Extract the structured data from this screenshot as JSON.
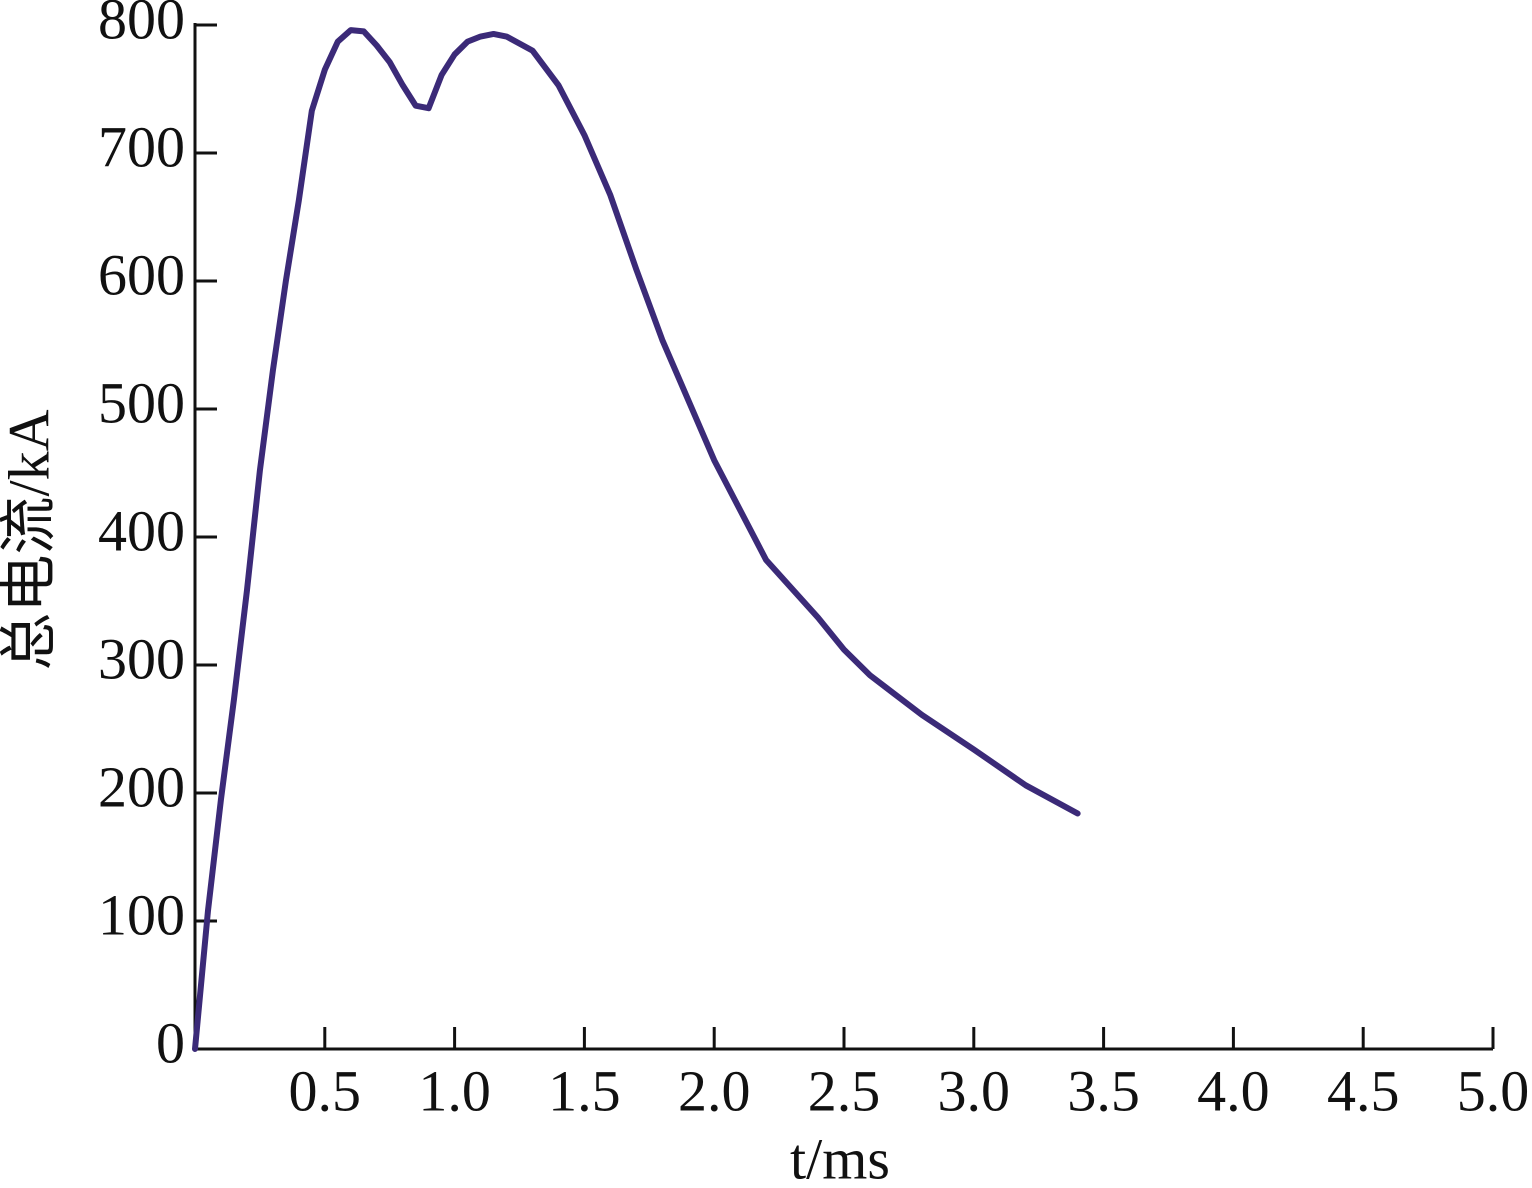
{
  "chart_data": {
    "type": "line",
    "xlabel": "t/ms",
    "ylabel": "总电流/kA",
    "x": [
      0,
      0.05,
      0.1,
      0.15,
      0.2,
      0.25,
      0.3,
      0.35,
      0.4,
      0.45,
      0.5,
      0.55,
      0.6,
      0.65,
      0.7,
      0.75,
      0.8,
      0.85,
      0.9,
      0.95,
      1.0,
      1.05,
      1.1,
      1.15,
      1.2,
      1.3,
      1.4,
      1.5,
      1.6,
      1.7,
      1.8,
      1.9,
      2.0,
      2.2,
      2.4,
      2.5,
      2.6,
      2.8,
      3.0,
      3.2,
      3.4
    ],
    "series": [
      {
        "color": "#3b2a78",
        "values": [
          0,
          108,
          195,
          273,
          358,
          452,
          530,
          600,
          663,
          733,
          765,
          787,
          796,
          795,
          784,
          771,
          753,
          737,
          735,
          761,
          777,
          787,
          791,
          793,
          791,
          780,
          753,
          714,
          667,
          609,
          554,
          507,
          460,
          382,
          337,
          312,
          292,
          261,
          234,
          206,
          184
        ]
      }
    ],
    "xlim": [
      0,
      5.0
    ],
    "xticks": [
      0.5,
      {
        "value": 1,
        "label": "1.0"
      },
      1.5,
      {
        "value": 2,
        "label": "2.0"
      },
      2.5,
      {
        "value": 3,
        "label": "3.0"
      },
      3.5,
      {
        "value": 4,
        "label": "4.0"
      },
      4.5,
      {
        "value": 5,
        "label": "5.0"
      }
    ],
    "ylim": [
      0,
      800
    ],
    "yticks": [
      0,
      100,
      200,
      300,
      400,
      500,
      600,
      700,
      800
    ]
  }
}
